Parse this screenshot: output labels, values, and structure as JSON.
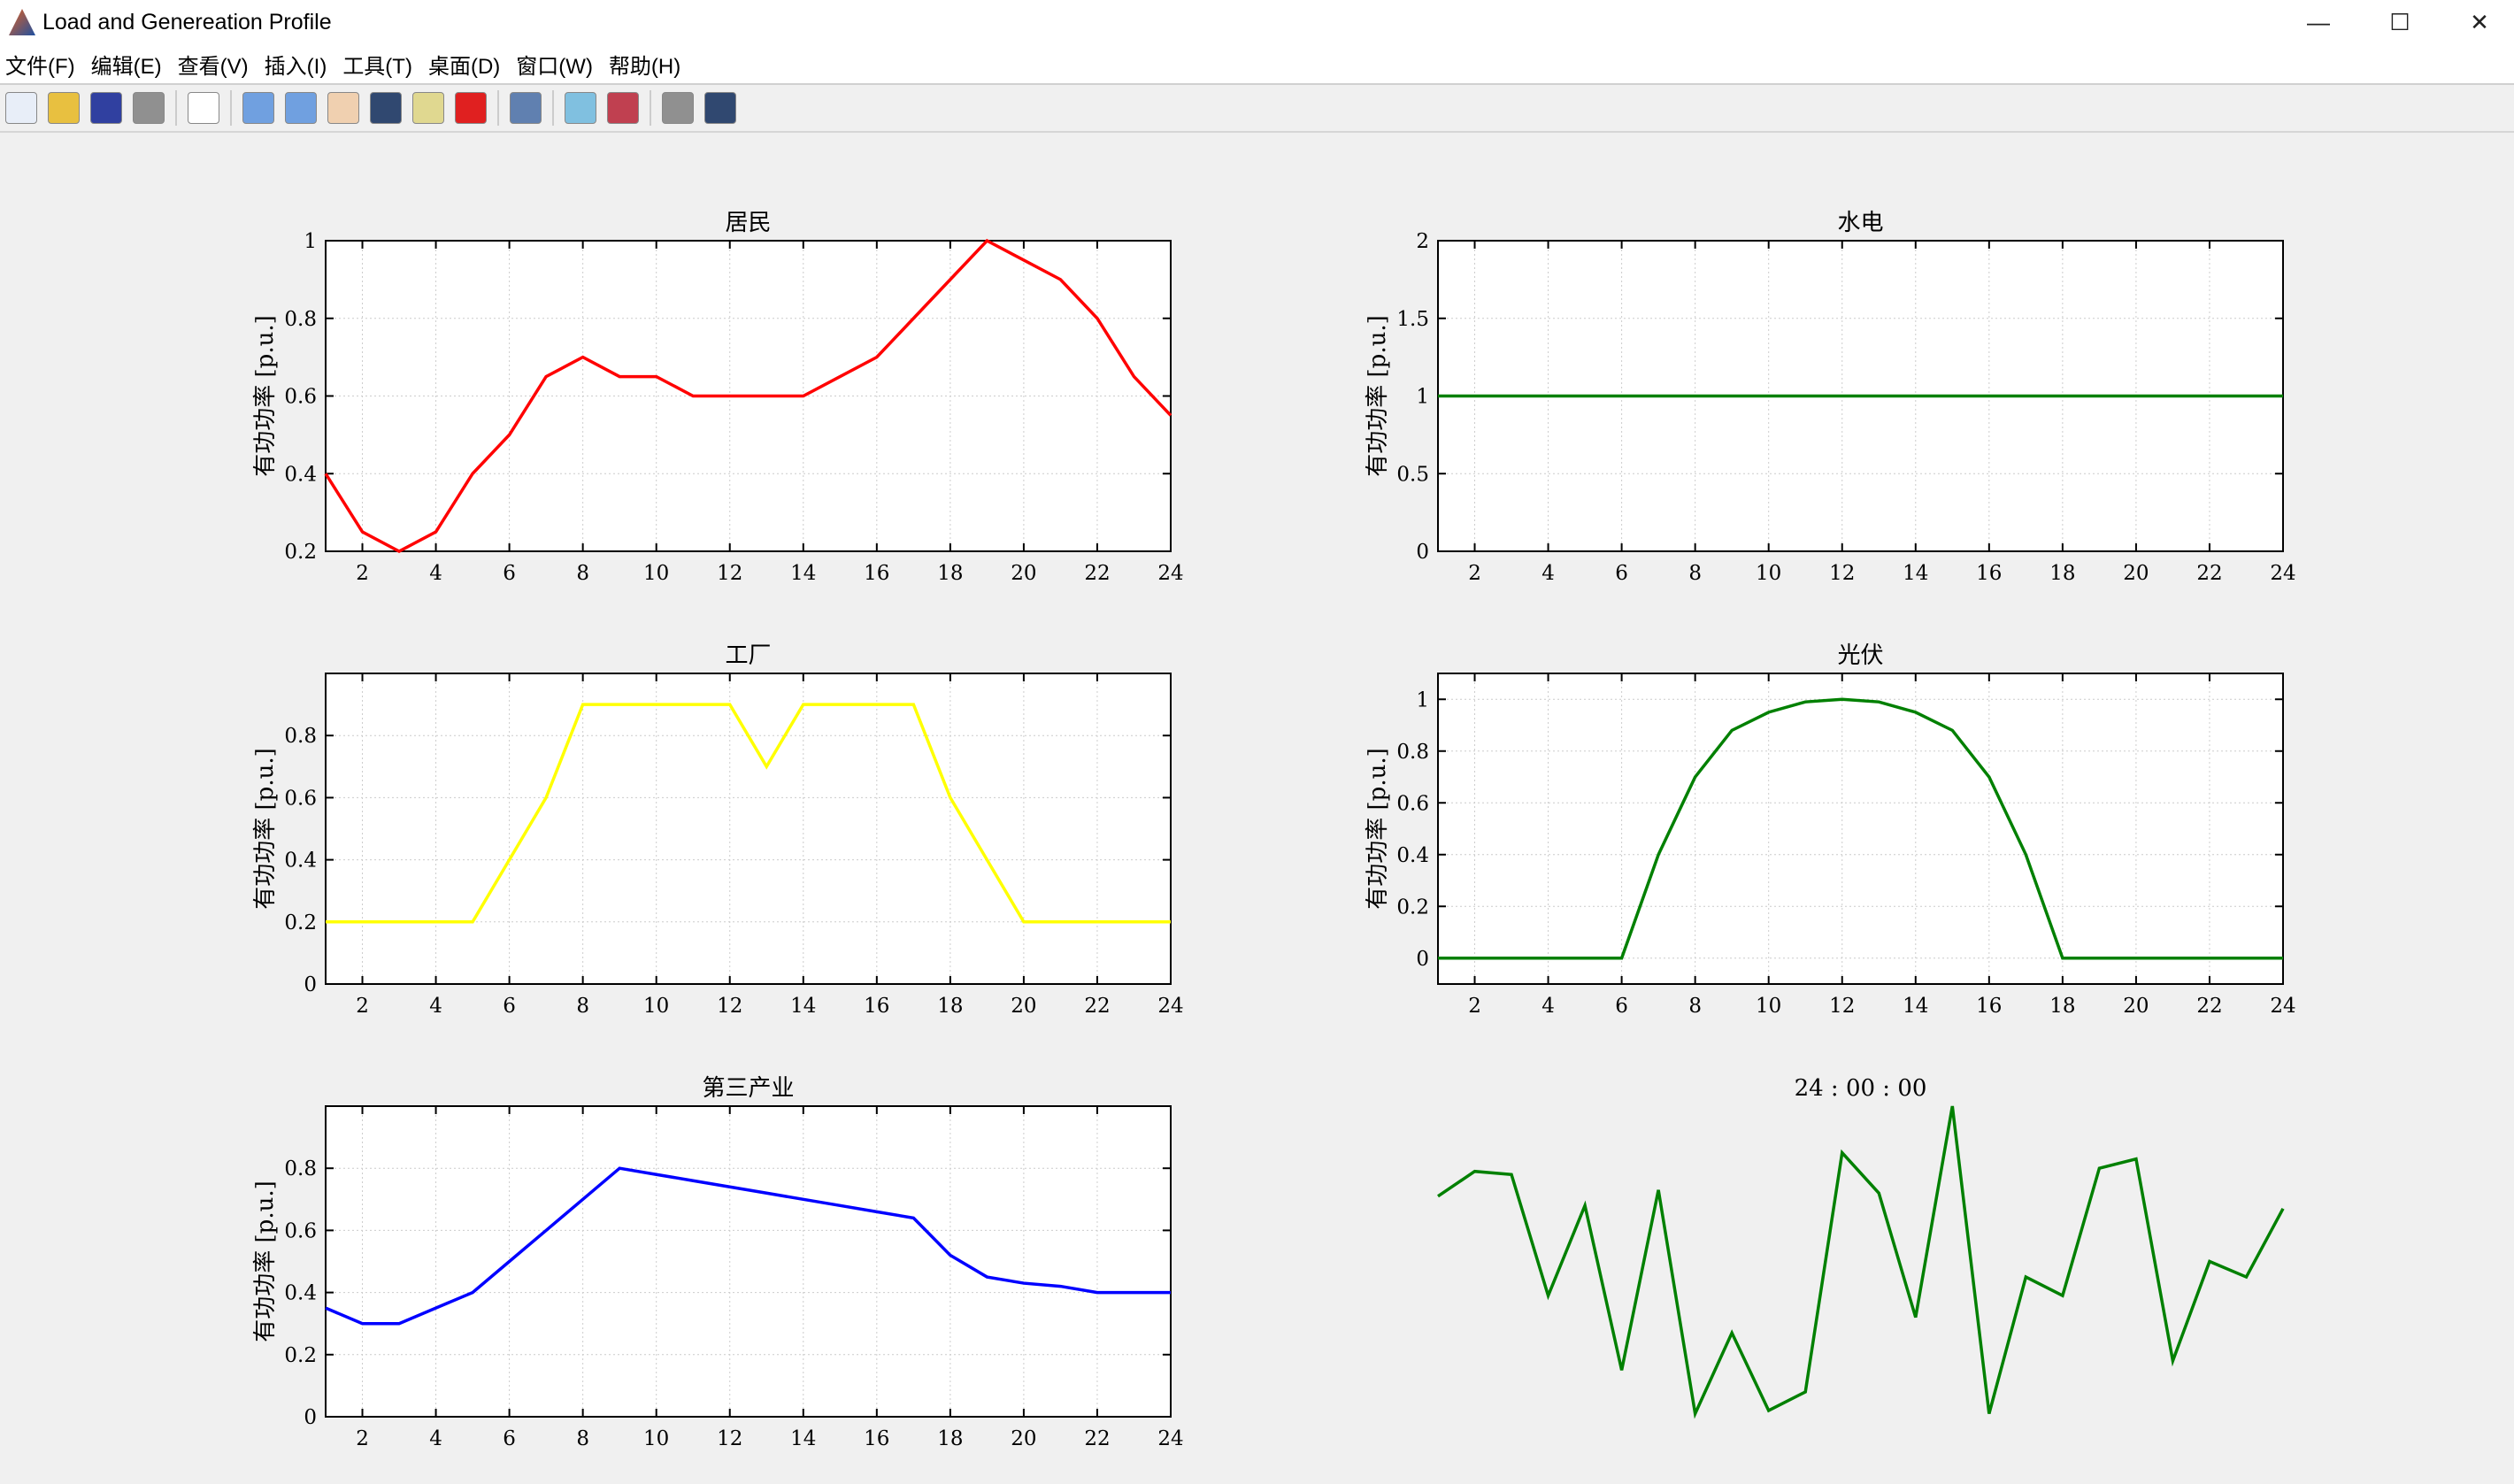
{
  "window": {
    "title": "Load and Genereation Profile",
    "minimize": "—",
    "maximize": "☐",
    "close": "✕"
  },
  "menu": [
    "文件(F)",
    "编辑(E)",
    "查看(V)",
    "插入(I)",
    "工具(T)",
    "桌面(D)",
    "窗口(W)",
    "帮助(H)"
  ],
  "toolbar": [
    {
      "name": "new-figure-icon",
      "color": "#e8eef8"
    },
    {
      "name": "open-file-icon",
      "color": "#e8c040"
    },
    {
      "name": "save-icon",
      "color": "#3040a0"
    },
    {
      "name": "print-icon",
      "color": "#909090"
    },
    {
      "sep": true
    },
    {
      "name": "pointer-icon",
      "color": "#ffffff"
    },
    {
      "sep": true
    },
    {
      "name": "zoom-in-icon",
      "color": "#70a0e0"
    },
    {
      "name": "zoom-out-icon",
      "color": "#70a0e0"
    },
    {
      "name": "pan-hand-icon",
      "color": "#f0d0b0"
    },
    {
      "name": "rotate-3d-icon",
      "color": "#304870"
    },
    {
      "name": "data-cursor-icon",
      "color": "#e0d890"
    },
    {
      "name": "brush-icon",
      "color": "#e02020"
    },
    {
      "sep": true
    },
    {
      "name": "link-plot-icon",
      "color": "#6080b0"
    },
    {
      "sep": true
    },
    {
      "name": "colorbar-icon",
      "color": "#80c0e0"
    },
    {
      "name": "legend-icon",
      "color": "#c04050"
    },
    {
      "sep": true
    },
    {
      "name": "hide-plot-tools-icon",
      "color": "#909090"
    },
    {
      "name": "show-plot-tools-icon",
      "color": "#304870"
    }
  ],
  "chart_data": [
    {
      "type": "line",
      "title": "居民",
      "ylabel": "有功功率 [p.u.]",
      "color": "#ff0000",
      "xlim": [
        1,
        24
      ],
      "ylim": [
        0.2,
        1
      ],
      "yticks": [
        0.2,
        0.4,
        0.6,
        0.8,
        1
      ],
      "xticks": [
        2,
        4,
        6,
        8,
        10,
        12,
        14,
        16,
        18,
        20,
        22,
        24
      ],
      "grid": true,
      "x": [
        1,
        2,
        3,
        4,
        5,
        6,
        7,
        8,
        9,
        10,
        11,
        12,
        13,
        14,
        15,
        16,
        17,
        18,
        19,
        20,
        21,
        22,
        23,
        24
      ],
      "y": [
        0.4,
        0.25,
        0.2,
        0.25,
        0.4,
        0.5,
        0.65,
        0.7,
        0.65,
        0.65,
        0.6,
        0.6,
        0.6,
        0.6,
        0.65,
        0.7,
        0.8,
        0.9,
        1.0,
        0.95,
        0.9,
        0.8,
        0.65,
        0.55
      ]
    },
    {
      "type": "line",
      "title": "水电",
      "ylabel": "有功功率 [p.u.]",
      "color": "#008000",
      "xlim": [
        1,
        24
      ],
      "ylim": [
        0,
        2
      ],
      "yticks": [
        0,
        0.5,
        1,
        1.5,
        2
      ],
      "xticks": [
        2,
        4,
        6,
        8,
        10,
        12,
        14,
        16,
        18,
        20,
        22,
        24
      ],
      "grid": true,
      "x": [
        1,
        2,
        3,
        4,
        5,
        6,
        7,
        8,
        9,
        10,
        11,
        12,
        13,
        14,
        15,
        16,
        17,
        18,
        19,
        20,
        21,
        22,
        23,
        24
      ],
      "y": [
        1,
        1,
        1,
        1,
        1,
        1,
        1,
        1,
        1,
        1,
        1,
        1,
        1,
        1,
        1,
        1,
        1,
        1,
        1,
        1,
        1,
        1,
        1,
        1
      ]
    },
    {
      "type": "line",
      "title": "工厂",
      "ylabel": "有功功率 [p.u.]",
      "color": "#ffff00",
      "xlim": [
        1,
        24
      ],
      "ylim": [
        0,
        1
      ],
      "yticks": [
        0,
        0.2,
        0.4,
        0.6,
        0.8
      ],
      "xticks": [
        2,
        4,
        6,
        8,
        10,
        12,
        14,
        16,
        18,
        20,
        22,
        24
      ],
      "grid": true,
      "x": [
        1,
        2,
        3,
        4,
        5,
        6,
        7,
        8,
        9,
        10,
        11,
        12,
        13,
        14,
        15,
        16,
        17,
        18,
        19,
        20,
        21,
        22,
        23,
        24
      ],
      "y": [
        0.2,
        0.2,
        0.2,
        0.2,
        0.2,
        0.4,
        0.6,
        0.9,
        0.9,
        0.9,
        0.9,
        0.9,
        0.7,
        0.9,
        0.9,
        0.9,
        0.9,
        0.6,
        0.4,
        0.2,
        0.2,
        0.2,
        0.2,
        0.2
      ]
    },
    {
      "type": "line",
      "title": "光伏",
      "ylabel": "有功功率 [p.u.]",
      "color": "#008000",
      "xlim": [
        1,
        24
      ],
      "ylim": [
        -0.1,
        1.1
      ],
      "yticks": [
        0,
        0.2,
        0.4,
        0.6,
        0.8,
        1
      ],
      "xticks": [
        2,
        4,
        6,
        8,
        10,
        12,
        14,
        16,
        18,
        20,
        22,
        24
      ],
      "grid": true,
      "x": [
        1,
        2,
        3,
        4,
        5,
        6,
        7,
        8,
        9,
        10,
        11,
        12,
        13,
        14,
        15,
        16,
        17,
        18,
        19,
        20,
        21,
        22,
        23,
        24
      ],
      "y": [
        0,
        0,
        0,
        0,
        0,
        0,
        0.4,
        0.7,
        0.88,
        0.95,
        0.99,
        1.0,
        0.99,
        0.95,
        0.88,
        0.7,
        0.4,
        0,
        0,
        0,
        0,
        0,
        0,
        0
      ]
    },
    {
      "type": "line",
      "title": "第三产业",
      "ylabel": "有功功率 [p.u.]",
      "color": "#0000ff",
      "xlim": [
        1,
        24
      ],
      "ylim": [
        0,
        1
      ],
      "yticks": [
        0,
        0.2,
        0.4,
        0.6,
        0.8
      ],
      "xticks": [
        2,
        4,
        6,
        8,
        10,
        12,
        14,
        16,
        18,
        20,
        22,
        24
      ],
      "grid": true,
      "x": [
        1,
        2,
        3,
        4,
        5,
        6,
        7,
        8,
        9,
        10,
        11,
        12,
        13,
        14,
        15,
        16,
        17,
        18,
        19,
        20,
        21,
        22,
        23,
        24
      ],
      "y": [
        0.35,
        0.3,
        0.3,
        0.35,
        0.4,
        0.5,
        0.6,
        0.7,
        0.8,
        0.78,
        0.76,
        0.74,
        0.72,
        0.7,
        0.68,
        0.66,
        0.64,
        0.52,
        0.45,
        0.43,
        0.42,
        0.4,
        0.4,
        0.4
      ]
    },
    {
      "type": "line",
      "title": "24 : 00 : 00",
      "color": "#008000",
      "axes_visible": false,
      "ylim": [
        0,
        1
      ],
      "x": [
        1,
        2,
        3,
        4,
        5,
        6,
        7,
        8,
        9,
        10,
        11,
        12,
        13,
        14,
        15,
        16,
        17,
        18,
        19,
        20,
        21,
        22,
        23,
        24
      ],
      "y": [
        0.71,
        0.79,
        0.78,
        0.39,
        0.68,
        0.15,
        0.73,
        0.01,
        0.27,
        0.02,
        0.08,
        0.85,
        0.72,
        0.32,
        1.0,
        0.01,
        0.45,
        0.39,
        0.8,
        0.83,
        0.18,
        0.5,
        0.45,
        0.67
      ]
    }
  ]
}
